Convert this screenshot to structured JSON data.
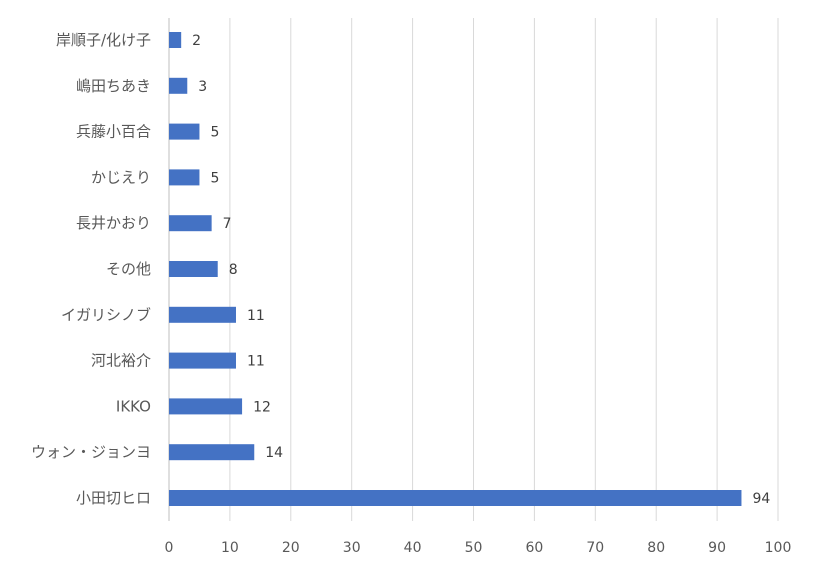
{
  "chart_data": {
    "type": "bar",
    "orientation": "horizontal",
    "title": "",
    "xlabel": "",
    "ylabel": "",
    "categories": [
      "岸順子/化け子",
      "嶋田ちあき",
      "兵藤小百合",
      "かじえり",
      "長井かおり",
      "その他",
      "イガリシノブ",
      "河北裕介",
      "IKKO",
      "ウォン・ジョンヨ",
      "小田切ヒロ"
    ],
    "values": [
      2,
      3,
      5,
      5,
      7,
      8,
      11,
      11,
      12,
      14,
      94
    ],
    "xlim": [
      0,
      100
    ],
    "xticks": [
      "0",
      "10",
      "20",
      "30",
      "40",
      "50",
      "60",
      "70",
      "80",
      "90",
      "100"
    ],
    "grid": "vertical",
    "legend": "none",
    "data_labels": true,
    "colors": {
      "bar": "#4472c4",
      "grid": "#d9d9d9",
      "text": "#595959"
    }
  }
}
